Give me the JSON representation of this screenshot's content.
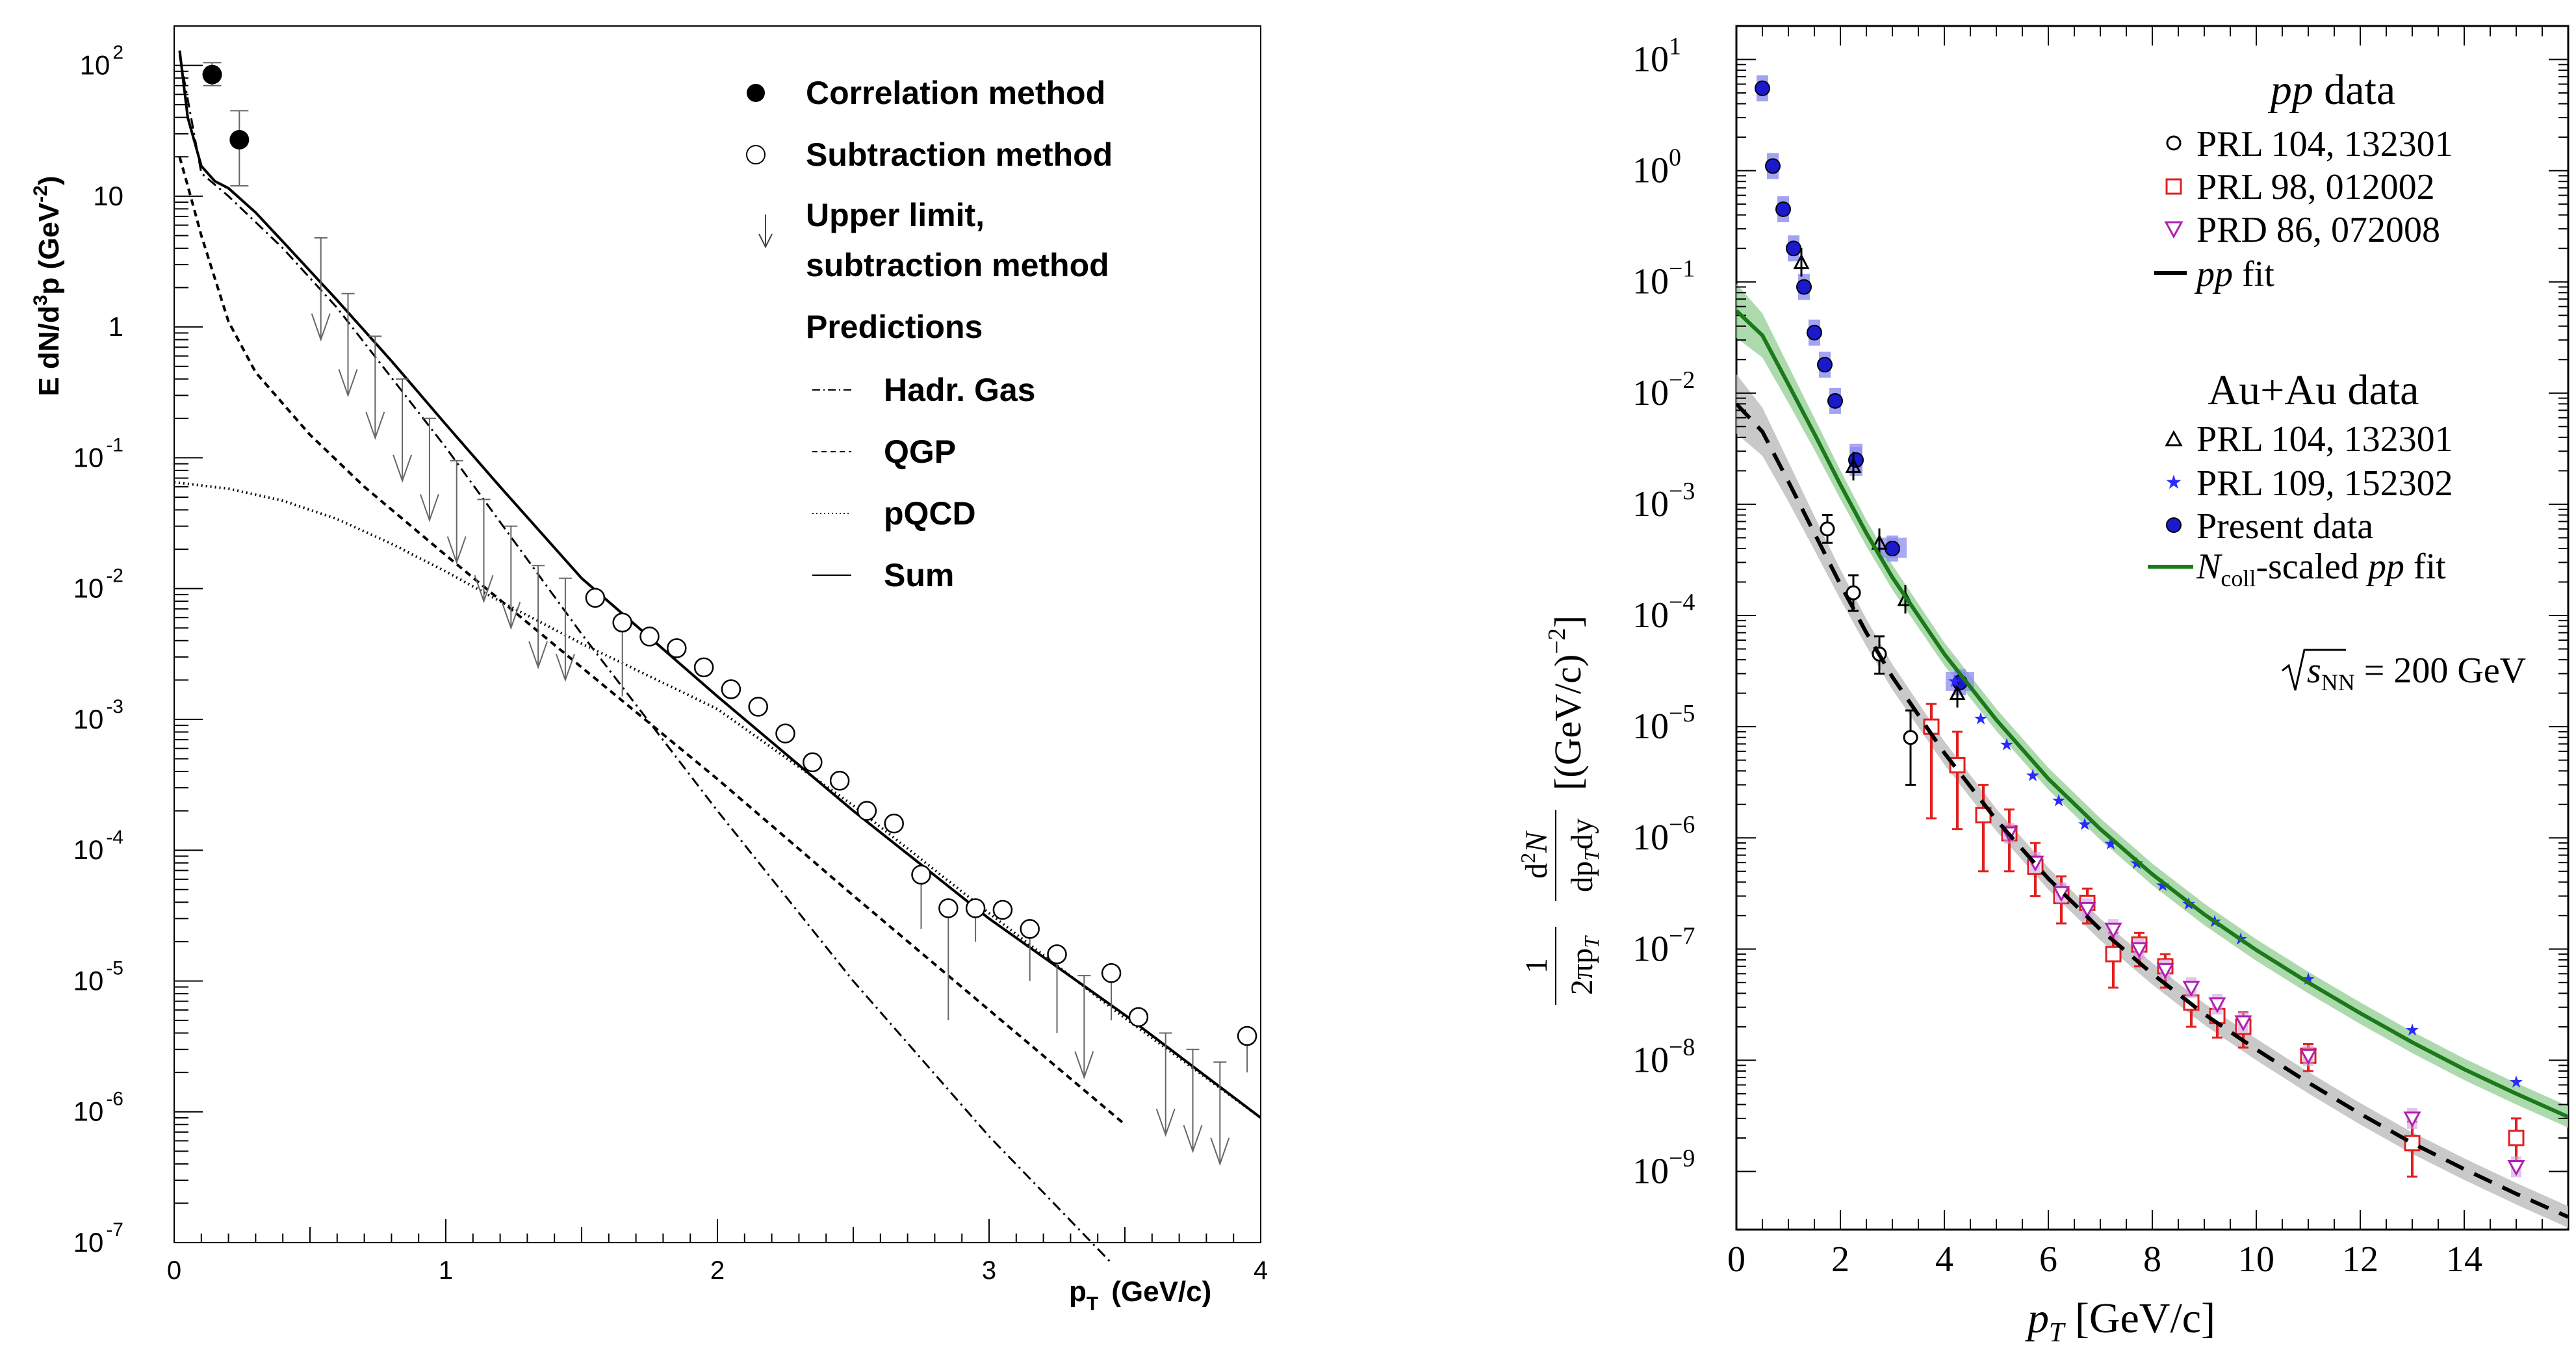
{
  "chart_data": [
    {
      "type": "scatter",
      "xlabel_main": "p",
      "xlabel_sub": "T",
      "xlabel_unit": "(GeV/c)",
      "ylabel": "E dN/d³p (GeV⁻²)",
      "ylabel_parts": {
        "a": "E dN/d",
        "b": "3",
        "c": "p (GeV",
        "d": "-2",
        "e": ")"
      },
      "xlim": [
        0,
        4
      ],
      "ylim": [
        1e-07,
        200
      ],
      "y_scale": "log",
      "x_ticks": [
        "0",
        "1",
        "2",
        "3",
        "4"
      ],
      "y_ticks": [
        {
          "v": 100,
          "base": "10",
          "exp": "2"
        },
        {
          "v": 10,
          "base": "10",
          "exp": ""
        },
        {
          "v": 1,
          "base": "1",
          "exp": ""
        },
        {
          "v": 0.1,
          "base": "10",
          "exp": "-1"
        },
        {
          "v": 0.01,
          "base": "10",
          "exp": "-2"
        },
        {
          "v": 0.001,
          "base": "10",
          "exp": "-3"
        },
        {
          "v": 0.0001,
          "base": "10",
          "exp": "-4"
        },
        {
          "v": 1e-05,
          "base": "10",
          "exp": "-5"
        },
        {
          "v": 1e-06,
          "base": "10",
          "exp": "-6"
        },
        {
          "v": 1e-07,
          "base": "10",
          "exp": "-7"
        }
      ],
      "legend": {
        "correlation": "Correlation method",
        "subtraction": "Subtraction method",
        "upper1": "Upper limit,",
        "upper2": "subtraction method",
        "predictions": "Predictions",
        "hadr": "Hadr. Gas",
        "qgp": "QGP",
        "pqcd": "pQCD",
        "sum": "Sum"
      },
      "correlation_points": [
        {
          "x": 0.14,
          "y": 85,
          "lo": 70,
          "hi": 105
        },
        {
          "x": 0.24,
          "y": 27,
          "lo": 12,
          "hi": 45
        }
      ],
      "subtraction_points": [
        {
          "x": 1.55,
          "y": 0.0085
        },
        {
          "x": 1.65,
          "y": 0.0055,
          "lo": 0.0015
        },
        {
          "x": 1.75,
          "y": 0.0043
        },
        {
          "x": 1.85,
          "y": 0.0035
        },
        {
          "x": 1.95,
          "y": 0.0025
        },
        {
          "x": 2.05,
          "y": 0.0017
        },
        {
          "x": 2.15,
          "y": 0.00125
        },
        {
          "x": 2.25,
          "y": 0.00078
        },
        {
          "x": 2.35,
          "y": 0.00047
        },
        {
          "x": 2.45,
          "y": 0.00034
        },
        {
          "x": 2.55,
          "y": 0.0002
        },
        {
          "x": 2.65,
          "y": 0.00016
        },
        {
          "x": 2.75,
          "y": 6.5e-05,
          "lo": 2.5e-05
        },
        {
          "x": 2.85,
          "y": 3.6e-05,
          "lo": 5e-06
        },
        {
          "x": 2.95,
          "y": 3.6e-05,
          "lo": 2e-05
        },
        {
          "x": 3.05,
          "y": 3.5e-05
        },
        {
          "x": 3.15,
          "y": 2.5e-05,
          "lo": 1e-05
        },
        {
          "x": 3.25,
          "y": 1.6e-05,
          "lo": 4e-06
        },
        {
          "x": 3.45,
          "y": 1.15e-05,
          "lo": 5e-06
        },
        {
          "x": 3.55,
          "y": 5.3e-06
        },
        {
          "x": 3.95,
          "y": 3.8e-06,
          "lo": 2e-06
        }
      ],
      "upper_limits": [
        {
          "x": 0.54,
          "top": 4.8
        },
        {
          "x": 0.64,
          "top": 1.8
        },
        {
          "x": 0.74,
          "top": 0.85
        },
        {
          "x": 0.84,
          "top": 0.4
        },
        {
          "x": 0.94,
          "top": 0.2
        },
        {
          "x": 1.04,
          "top": 0.095
        },
        {
          "x": 1.14,
          "top": 0.048
        },
        {
          "x": 1.24,
          "top": 0.03
        },
        {
          "x": 1.34,
          "top": 0.015
        },
        {
          "x": 1.44,
          "top": 0.012
        },
        {
          "x": 3.35,
          "top": 1.1e-05
        },
        {
          "x": 3.65,
          "top": 4e-06
        },
        {
          "x": 3.75,
          "top": 3e-06
        },
        {
          "x": 3.85,
          "top": 2.4e-06
        }
      ],
      "series": [
        {
          "name": "Sum",
          "x": [
            0.02,
            0.05,
            0.1,
            0.15,
            0.2,
            0.3,
            0.4,
            0.6,
            0.8,
            1.0,
            1.2,
            1.5,
            2.0,
            2.5,
            3.0,
            3.5,
            4.0
          ],
          "y": [
            130,
            40,
            17,
            13,
            11.5,
            7.5,
            4.5,
            1.6,
            0.55,
            0.18,
            0.06,
            0.012,
            0.0015,
            0.0002,
            3e-05,
            5.5e-06,
            9e-07
          ]
        },
        {
          "name": "Hadr. Gas",
          "x": [
            0.02,
            0.1,
            0.2,
            0.4,
            0.6,
            1.0,
            1.5,
            2.0,
            2.5,
            3.0,
            3.45
          ],
          "y": [
            120,
            15,
            10,
            4,
            1.4,
            0.12,
            0.0045,
            0.0002,
            1e-05,
            6.5e-07,
            7e-08
          ]
        },
        {
          "name": "QGP",
          "x": [
            0.02,
            0.05,
            0.1,
            0.2,
            0.3,
            0.5,
            0.7,
            1.0,
            1.5,
            2.0,
            2.5,
            3.0,
            3.5
          ],
          "y": [
            20,
            12,
            5,
            1.1,
            0.45,
            0.15,
            0.06,
            0.018,
            0.0025,
            0.00035,
            4.5e-05,
            6e-06,
            8e-07
          ]
        },
        {
          "name": "pQCD",
          "x": [
            0.0,
            0.2,
            0.4,
            0.6,
            0.8,
            1.0,
            1.2,
            1.5,
            2.0,
            2.5,
            3.0,
            3.5,
            4.0
          ],
          "y": [
            0.065,
            0.058,
            0.047,
            0.034,
            0.022,
            0.0135,
            0.008,
            0.0038,
            0.0012,
            0.00022,
            3.3e-05,
            5.2e-06,
            9e-07
          ]
        }
      ]
    },
    {
      "type": "scatter",
      "xlabel": "pT [GeV/c]",
      "xlabel_parts": {
        "p": "p",
        "t": "T",
        "rest": " [GeV/c]"
      },
      "ylabel": "(1/2πpT) d²N/dpT dy [(GeV/c)⁻²]",
      "ylabel_parts": {
        "one": "1",
        "den": "2πp",
        "den_sub": "T",
        "num": "d",
        "num_sup": "2",
        "num2": "N",
        "den2": "dp",
        "den2_sub": "T",
        "den2_rest": "dy",
        "bracket": "[(GeV/c)",
        "bracket_exp": "−2",
        "bracket_end": "]"
      },
      "xlim": [
        0,
        16
      ],
      "ylim": [
        3e-10,
        20
      ],
      "y_scale": "log",
      "x_ticks": [
        "0",
        "2",
        "4",
        "6",
        "8",
        "10",
        "12",
        "14"
      ],
      "y_ticks": [
        {
          "v": 10,
          "exp": "1"
        },
        {
          "v": 1,
          "exp": "0"
        },
        {
          "v": 0.1,
          "exp": "−1"
        },
        {
          "v": 0.01,
          "exp": "−2"
        },
        {
          "v": 0.001,
          "exp": "−3"
        },
        {
          "v": 0.0001,
          "exp": "−4"
        },
        {
          "v": 1e-05,
          "exp": "−5"
        },
        {
          "v": 1e-06,
          "exp": "−6"
        },
        {
          "v": 1e-07,
          "exp": "−7"
        },
        {
          "v": 1e-08,
          "exp": "−8"
        },
        {
          "v": 1e-09,
          "exp": "−9"
        }
      ],
      "legend": {
        "pp_title": "pp data",
        "pp_title_pp": "pp",
        "pp_title_rest": " data",
        "prl104": "PRL 104, 132301",
        "prl98": "PRL 98, 012002",
        "prd86": "PRD 86, 072008",
        "ppfit": "pp fit",
        "ppfit_pp": "pp",
        "ppfit_rest": " fit",
        "auau_title": "Au+Au data",
        "auau_prl104": "PRL 104, 132301",
        "auau_prl109": "PRL 109, 152302",
        "present": "Present data",
        "ncoll_n": "N",
        "ncoll_sub": "coll",
        "ncoll_rest": "-scaled ",
        "ncoll_pp": "pp",
        "ncoll_fit": " fit",
        "ncoll": "Ncoll-scaled pp fit",
        "energy": "√sNN = 200 GeV",
        "energy_s": "s",
        "energy_sub": "NN",
        "energy_rest": " = 200 GeV"
      },
      "colors": {
        "pp_fit": "#000000",
        "ncoll_fit": "#1a7a1a",
        "ncoll_band": "#9fd49f",
        "pp_band": "#c0c0c0",
        "present": "#1a1acc",
        "prl98": "#e02020",
        "prd86": "#b020b0",
        "prl109": "#2a2aff",
        "sys_box": "#8c8cf0"
      },
      "pp_fit": {
        "x": [
          0.0,
          0.5,
          1.0,
          1.5,
          2.0,
          2.5,
          3.0,
          4.0,
          5.0,
          6.0,
          7.0,
          8.0,
          9.0,
          10.0,
          11.0,
          12.0,
          13.0,
          14.0,
          15.0,
          16.0
        ],
        "y": [
          0.008,
          0.0045,
          0.0016,
          0.00055,
          0.00019,
          7e-05,
          2.8e-05,
          5.8e-06,
          1.45e-06,
          4.3e-07,
          1.5e-07,
          6e-08,
          2.6e-08,
          1.25e-08,
          6.3e-09,
          3.3e-09,
          1.8e-09,
          1.05e-09,
          6.3e-10,
          3.9e-10
        ]
      },
      "ncoll_fit": {
        "x": [
          0.0,
          0.5,
          1.0,
          1.5,
          2.0,
          2.5,
          3.0,
          4.0,
          5.0,
          6.0,
          7.0,
          8.0,
          9.0,
          10.0,
          11.0,
          12.0,
          13.0,
          14.0,
          15.0,
          16.0
        ],
        "y": [
          0.055,
          0.033,
          0.012,
          0.0043,
          0.0015,
          0.00055,
          0.00022,
          4.5e-05,
          1.15e-05,
          3.4e-06,
          1.2e-06,
          4.7e-07,
          2.05e-07,
          9.8e-08,
          5e-08,
          2.65e-08,
          1.45e-08,
          8.3e-09,
          5e-09,
          3.1e-09
        ]
      },
      "present_data": [
        {
          "x": 0.5,
          "y": 5.5
        },
        {
          "x": 0.7,
          "y": 1.1
        },
        {
          "x": 0.9,
          "y": 0.45
        },
        {
          "x": 1.1,
          "y": 0.2
        },
        {
          "x": 1.3,
          "y": 0.09
        },
        {
          "x": 1.5,
          "y": 0.035
        },
        {
          "x": 1.7,
          "y": 0.018
        },
        {
          "x": 1.9,
          "y": 0.0085
        },
        {
          "x": 2.3,
          "y": 0.0025
        },
        {
          "x": 3.0,
          "y": 0.0004
        },
        {
          "x": 4.3,
          "y": 2.5e-05
        }
      ],
      "present_sys": [
        {
          "x": 2.3,
          "y": 0.0025,
          "w": 0.25,
          "lo": 0.0018,
          "hi": 0.0035
        },
        {
          "x": 3.0,
          "y": 0.0004,
          "w": 0.55,
          "lo": 0.00033,
          "hi": 0.0005
        },
        {
          "x": 4.3,
          "y": 2.5e-05,
          "w": 0.55,
          "lo": 2.1e-05,
          "hi": 3.1e-05
        }
      ],
      "auau_prl104": [
        {
          "x": 1.25,
          "y": 0.15
        },
        {
          "x": 2.25,
          "y": 0.0022
        },
        {
          "x": 2.75,
          "y": 0.00045
        },
        {
          "x": 3.25,
          "y": 0.00014
        },
        {
          "x": 4.25,
          "y": 2e-05
        }
      ],
      "auau_prl109": [
        {
          "x": 4.2,
          "y": 2.6e-05
        },
        {
          "x": 4.7,
          "y": 1.2e-05
        },
        {
          "x": 5.2,
          "y": 7e-06
        },
        {
          "x": 5.7,
          "y": 3.7e-06
        },
        {
          "x": 6.2,
          "y": 2.2e-06
        },
        {
          "x": 6.7,
          "y": 1.35e-06
        },
        {
          "x": 7.2,
          "y": 9e-07
        },
        {
          "x": 7.7,
          "y": 6e-07
        },
        {
          "x": 8.2,
          "y": 3.8e-07
        },
        {
          "x": 8.7,
          "y": 2.6e-07
        },
        {
          "x": 9.2,
          "y": 1.8e-07
        },
        {
          "x": 9.7,
          "y": 1.25e-07
        },
        {
          "x": 11.0,
          "y": 5.5e-08
        },
        {
          "x": 13.0,
          "y": 1.9e-08
        },
        {
          "x": 15.0,
          "y": 6.5e-09
        }
      ],
      "pp_prl104": [
        {
          "x": 1.75,
          "y": 0.0006,
          "lo": 0.00045,
          "hi": 0.0008
        },
        {
          "x": 2.25,
          "y": 0.00016,
          "lo": 0.00011,
          "hi": 0.00023
        },
        {
          "x": 2.75,
          "y": 4.5e-05,
          "lo": 3e-05,
          "hi": 6.5e-05
        },
        {
          "x": 3.35,
          "y": 8e-06,
          "lo": 3e-06,
          "hi": 1.4e-05
        }
      ],
      "pp_prl98": [
        {
          "x": 3.75,
          "y": 1e-05,
          "lo": 1.5e-06,
          "hi": 1.6e-05
        },
        {
          "x": 4.25,
          "y": 4.5e-06,
          "lo": 1.2e-06,
          "hi": 9e-06
        },
        {
          "x": 4.75,
          "y": 1.6e-06,
          "lo": 5e-07,
          "hi": 3e-06
        },
        {
          "x": 5.25,
          "y": 1.1e-06,
          "lo": 5e-07,
          "hi": 1.8e-06
        },
        {
          "x": 5.75,
          "y": 5.5e-07,
          "lo": 3e-07,
          "hi": 9e-07
        },
        {
          "x": 6.25,
          "y": 3e-07,
          "lo": 1.7e-07,
          "hi": 4.5e-07
        },
        {
          "x": 6.75,
          "y": 2.6e-07,
          "lo": 1.7e-07,
          "hi": 3.5e-07
        },
        {
          "x": 7.25,
          "y": 9e-08,
          "lo": 4.5e-08,
          "hi": 1.4e-07
        },
        {
          "x": 7.75,
          "y": 1.1e-07,
          "lo": 7e-08,
          "hi": 1.4e-07
        },
        {
          "x": 8.25,
          "y": 7e-08,
          "lo": 4.5e-08,
          "hi": 9e-08
        },
        {
          "x": 8.75,
          "y": 3.3e-08,
          "lo": 2e-08,
          "hi": 5e-08
        },
        {
          "x": 9.25,
          "y": 2.5e-08,
          "lo": 1.6e-08,
          "hi": 3.5e-08
        },
        {
          "x": 9.75,
          "y": 2e-08,
          "lo": 1.3e-08,
          "hi": 2.7e-08
        },
        {
          "x": 11.0,
          "y": 1.1e-08,
          "lo": 8e-09,
          "hi": 1.4e-08
        },
        {
          "x": 13.0,
          "y": 1.8e-09,
          "lo": 9e-10,
          "hi": 2.8e-09
        },
        {
          "x": 15.0,
          "y": 2e-09,
          "lo": 1.2e-09,
          "hi": 3e-09
        }
      ],
      "pp_prd86": [
        {
          "x": 5.25,
          "y": 1.1e-06
        },
        {
          "x": 5.75,
          "y": 6e-07
        },
        {
          "x": 6.25,
          "y": 3.2e-07
        },
        {
          "x": 6.75,
          "y": 2.3e-07
        },
        {
          "x": 7.25,
          "y": 1.5e-07
        },
        {
          "x": 7.75,
          "y": 1e-07
        },
        {
          "x": 8.25,
          "y": 6.5e-08
        },
        {
          "x": 8.75,
          "y": 4.5e-08
        },
        {
          "x": 9.25,
          "y": 3.2e-08
        },
        {
          "x": 9.75,
          "y": 2.2e-08
        },
        {
          "x": 11.0,
          "y": 1.1e-08
        },
        {
          "x": 13.0,
          "y": 3e-09
        },
        {
          "x": 15.0,
          "y": 1.1e-09
        }
      ]
    }
  ]
}
